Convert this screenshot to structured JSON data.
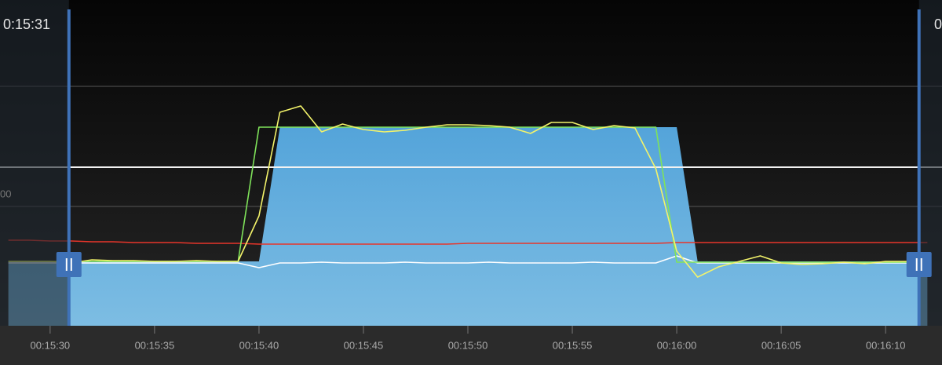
{
  "chart_data": {
    "type": "area",
    "cursor_time": "0:15:31",
    "left_fragment": "00",
    "right_fragment": "0",
    "x": [
      "00:15:28",
      "00:15:29",
      "00:15:30",
      "00:15:31",
      "00:15:32",
      "00:15:33",
      "00:15:34",
      "00:15:35",
      "00:15:36",
      "00:15:37",
      "00:15:38",
      "00:15:39",
      "00:15:40",
      "00:15:41",
      "00:15:42",
      "00:15:43",
      "00:15:44",
      "00:15:45",
      "00:15:46",
      "00:15:47",
      "00:15:48",
      "00:15:49",
      "00:15:50",
      "00:15:51",
      "00:15:52",
      "00:15:53",
      "00:15:54",
      "00:15:55",
      "00:15:56",
      "00:15:57",
      "00:15:58",
      "00:15:59",
      "00:16:00",
      "00:16:01",
      "00:16:02",
      "00:16:03",
      "00:16:04",
      "00:16:05",
      "00:16:06",
      "00:16:07",
      "00:16:08",
      "00:16:09",
      "00:16:10",
      "00:16:11",
      "00:16:12"
    ],
    "xlim": [
      "00:15:27.6",
      "00:16:12.7"
    ],
    "xticks": [
      "00:15:30",
      "00:15:35",
      "00:15:40",
      "00:15:45",
      "00:15:50",
      "00:15:55",
      "00:16:00",
      "00:16:05",
      "00:16:10"
    ],
    "ylim": [
      0,
      103.75
    ],
    "yticks": [
      38,
      76.25
    ],
    "grid": true,
    "selection": [
      "00:15:30.9",
      "00:16:11.6"
    ],
    "reference_lines": [
      {
        "value": 50.5,
        "color": "#f2f2f2"
      }
    ],
    "series": [
      {
        "kind": "area",
        "color": "#5aa8dc",
        "values": [
          20.5,
          20.5,
          20.5,
          20.5,
          20.5,
          20.5,
          20.5,
          20.5,
          20.5,
          20.5,
          20.5,
          20.5,
          20.5,
          63.25,
          63.25,
          63.25,
          63.25,
          63.25,
          63.25,
          63.25,
          63.25,
          63.25,
          63.25,
          63.25,
          63.25,
          63.25,
          63.25,
          63.25,
          63.25,
          63.25,
          63.25,
          63.25,
          63.25,
          20.5,
          20.5,
          20.5,
          20.5,
          20.5,
          20.5,
          20.5,
          20.5,
          20.5,
          20.5,
          20.5,
          20.5
        ]
      },
      {
        "kind": "line",
        "color": "#e8352a",
        "values": [
          27.25,
          27.25,
          27,
          27,
          26.75,
          26.75,
          26.5,
          26.5,
          26.5,
          26.25,
          26.25,
          26.25,
          26,
          26,
          26,
          26,
          26,
          26,
          26,
          26,
          26,
          26,
          26.25,
          26.25,
          26.25,
          26.25,
          26.25,
          26.25,
          26.25,
          26.25,
          26.25,
          26.25,
          26.5,
          26.5,
          26.5,
          26.5,
          26.5,
          26.5,
          26.5,
          26.5,
          26.5,
          26.5,
          26.5,
          26.5,
          26.5
        ]
      },
      {
        "kind": "line",
        "color": "#ffffff",
        "values": [
          20,
          20,
          20,
          20,
          20,
          20,
          20,
          20,
          20,
          20,
          20,
          20,
          18.5,
          20,
          20,
          20.25,
          20,
          20,
          20,
          20.25,
          20,
          20,
          20,
          20.25,
          20,
          20,
          20,
          20,
          20.25,
          20,
          20,
          20,
          22.25,
          20,
          20,
          20,
          20,
          20,
          20,
          20,
          20,
          20,
          20,
          20,
          20
        ]
      },
      {
        "kind": "line",
        "color": "#7fe35a",
        "values": [
          20.5,
          20.5,
          20.5,
          20.5,
          20.5,
          20.5,
          20.5,
          20.5,
          20.5,
          20.5,
          20.5,
          20.5,
          63.25,
          63.25,
          63.25,
          63.25,
          63.25,
          63.25,
          63.25,
          63.25,
          63.25,
          63.25,
          63.25,
          63.25,
          63.25,
          63.25,
          63.25,
          63.25,
          63.25,
          63.25,
          63.25,
          63.25,
          20.25,
          20.25,
          20.25,
          20.25,
          20.25,
          20.25,
          20.25,
          20.25,
          20.25,
          20.25,
          20.25,
          20.25,
          20.25
        ]
      },
      {
        "kind": "line",
        "color": "#f3f36a",
        "values": [
          20.5,
          20.5,
          20.5,
          20,
          21,
          20.75,
          20.75,
          20.5,
          20.5,
          20.75,
          20.5,
          20.5,
          35,
          68,
          70,
          61.75,
          64.25,
          62.5,
          61.75,
          62.25,
          63.25,
          64,
          64,
          63.75,
          63.25,
          61.25,
          64.75,
          64.75,
          62.5,
          63.75,
          63,
          50,
          23.75,
          15.5,
          18.75,
          20.5,
          22.25,
          20,
          19.5,
          19.75,
          20.25,
          19.75,
          20.5,
          20.5,
          20.5
        ]
      }
    ]
  }
}
